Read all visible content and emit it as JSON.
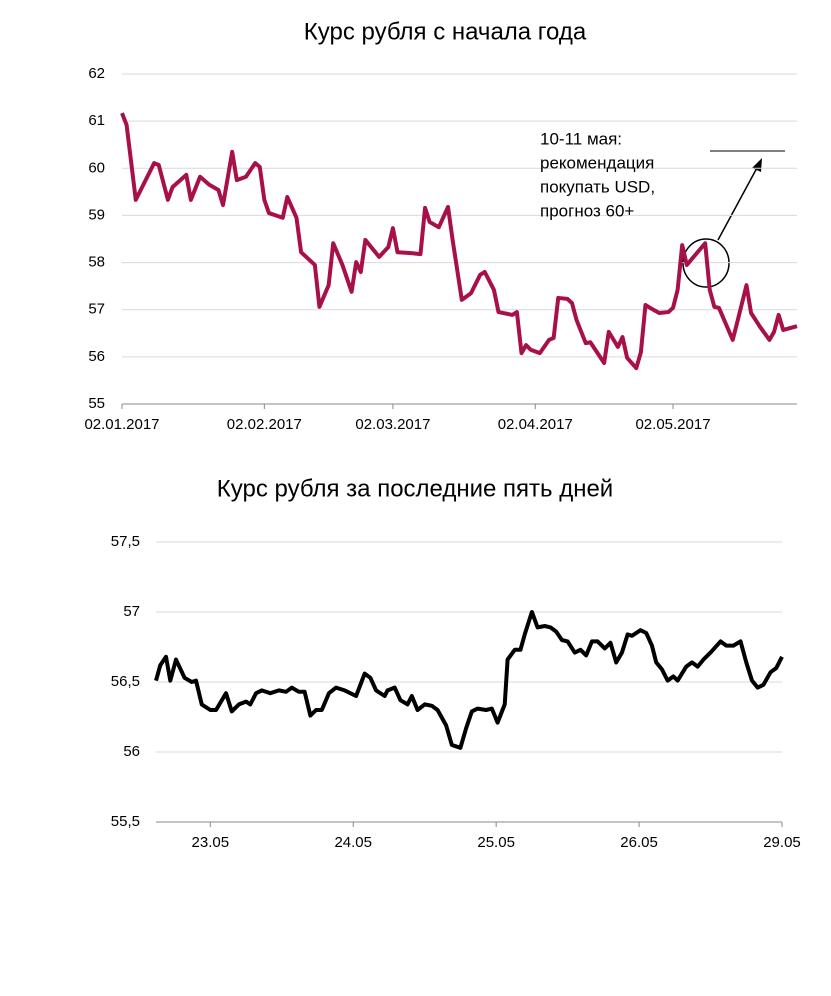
{
  "chart_data": [
    {
      "type": "line",
      "title": "Курс рубля с начала года",
      "x": [
        0,
        1,
        3,
        7,
        8,
        10,
        11,
        14,
        15,
        17,
        19,
        21,
        22,
        24,
        25,
        27,
        29,
        30,
        31,
        32,
        35,
        36,
        38,
        39,
        42,
        43,
        45,
        46,
        48,
        50,
        51,
        52,
        53,
        56,
        58,
        59,
        60,
        63,
        65,
        66,
        67,
        69,
        71,
        72,
        74,
        76,
        78,
        79,
        81,
        82,
        85,
        86,
        87,
        88,
        89,
        91,
        93,
        94,
        95,
        97,
        98,
        99,
        101,
        102,
        105,
        106,
        108,
        109,
        110,
        112,
        113,
        114,
        115,
        117,
        119,
        120,
        121,
        122,
        123,
        127,
        128,
        129,
        130,
        133,
        134,
        136,
        137,
        139,
        141,
        142,
        143,
        144,
        147
      ],
      "series": [
        {
          "name": null,
          "color": "#a8104a",
          "values": [
            61.17,
            60.92,
            59.33,
            60.11,
            60.07,
            59.33,
            59.6,
            59.86,
            59.33,
            59.82,
            59.65,
            59.54,
            59.22,
            60.35,
            59.75,
            59.82,
            60.11,
            60.03,
            59.33,
            59.05,
            58.95,
            59.39,
            58.95,
            58.22,
            57.95,
            57.06,
            57.52,
            58.41,
            57.95,
            57.38,
            58.01,
            57.8,
            58.48,
            58.12,
            58.33,
            58.73,
            58.22,
            58.2,
            58.18,
            59.16,
            58.86,
            58.75,
            59.18,
            58.48,
            57.21,
            57.35,
            57.74,
            57.8,
            57.42,
            56.95,
            56.89,
            56.95,
            56.08,
            56.25,
            56.15,
            56.08,
            56.36,
            56.4,
            57.25,
            57.23,
            57.14,
            56.78,
            56.29,
            56.31,
            55.87,
            56.53,
            56.21,
            56.42,
            55.98,
            55.76,
            56.1,
            57.1,
            57.04,
            56.93,
            56.95,
            57.04,
            57.42,
            58.37,
            57.95,
            58.41,
            57.42,
            57.06,
            57.04,
            56.36,
            56.74,
            57.52,
            56.93,
            56.63,
            56.36,
            56.53,
            56.89,
            56.57,
            56.65
          ]
        }
      ],
      "xlim": [
        0,
        147
      ],
      "xticks": [
        {
          "value": 0,
          "label": "02.01.2017"
        },
        {
          "value": 31,
          "label": "02.02.2017"
        },
        {
          "value": 59,
          "label": "02.03.2017"
        },
        {
          "value": 90,
          "label": "02.04.2017"
        },
        {
          "value": 120,
          "label": "02.05.2017"
        }
      ],
      "ylim": [
        55,
        62
      ],
      "yticks": [
        55,
        56,
        57,
        58,
        59,
        60,
        61,
        62
      ],
      "grid": true,
      "annotation": [
        "10-11 мая:",
        "рекомендация",
        "покупать USD,",
        "прогноз 60+"
      ]
    },
    {
      "type": "line",
      "title": "Курс рубля за последние пять дней",
      "x": [
        -0.38,
        -0.35,
        -0.31,
        -0.28,
        -0.24,
        -0.18,
        -0.13,
        -0.1,
        -0.06,
        0,
        0.04,
        0.11,
        0.15,
        0.2,
        0.25,
        0.28,
        0.32,
        0.36,
        0.42,
        0.48,
        0.53,
        0.57,
        0.62,
        0.66,
        0.7,
        0.74,
        0.78,
        0.83,
        0.88,
        0.94,
        0.98,
        1.02,
        1.08,
        1.12,
        1.16,
        1.22,
        1.24,
        1.29,
        1.33,
        1.38,
        1.41,
        1.45,
        1.5,
        1.55,
        1.59,
        1.65,
        1.69,
        1.75,
        1.79,
        1.83,
        1.87,
        1.93,
        1.97,
        2.01,
        2.06,
        2.08,
        2.13,
        2.17,
        2.2,
        2.25,
        2.29,
        2.34,
        2.38,
        2.42,
        2.46,
        2.5,
        2.55,
        2.59,
        2.63,
        2.67,
        2.71,
        2.76,
        2.8,
        2.84,
        2.88,
        2.92,
        2.95,
        3.01,
        3.05,
        3.09,
        3.12,
        3.16,
        3.2,
        3.24,
        3.27,
        3.33,
        3.37,
        3.41,
        3.45,
        3.5,
        3.57,
        3.61,
        3.66,
        3.71,
        3.75,
        3.79,
        3.83,
        3.87,
        3.92,
        3.96,
        4.0
      ],
      "series": [
        {
          "name": null,
          "color": "#000000",
          "values": [
            56.51,
            56.62,
            56.68,
            56.51,
            56.66,
            56.53,
            56.5,
            56.51,
            56.34,
            56.3,
            56.3,
            56.42,
            56.29,
            56.34,
            56.36,
            56.34,
            56.42,
            56.44,
            56.42,
            56.44,
            56.43,
            56.46,
            56.43,
            56.43,
            56.26,
            56.3,
            56.3,
            56.42,
            56.46,
            56.44,
            56.42,
            56.4,
            56.56,
            56.53,
            56.44,
            56.4,
            56.44,
            56.46,
            56.37,
            56.34,
            56.4,
            56.3,
            56.34,
            56.33,
            56.3,
            56.19,
            56.05,
            56.03,
            56.17,
            56.29,
            56.31,
            56.3,
            56.31,
            56.21,
            56.34,
            56.66,
            56.73,
            56.73,
            56.84,
            57.0,
            56.89,
            56.9,
            56.89,
            56.86,
            56.8,
            56.79,
            56.71,
            56.73,
            56.69,
            56.79,
            56.79,
            56.74,
            56.78,
            56.64,
            56.71,
            56.84,
            56.83,
            56.87,
            56.85,
            56.76,
            56.64,
            56.59,
            56.51,
            56.54,
            56.51,
            56.61,
            56.64,
            56.61,
            56.66,
            56.71,
            56.79,
            56.76,
            56.76,
            56.79,
            56.64,
            56.51,
            56.46,
            56.48,
            56.57,
            56.6,
            56.68
          ]
        }
      ],
      "xlim": [
        -0.38,
        4
      ],
      "xticks": [
        {
          "value": 0,
          "label": "23.05"
        },
        {
          "value": 1,
          "label": "24.05"
        },
        {
          "value": 2,
          "label": "25.05"
        },
        {
          "value": 3,
          "label": "26.05"
        },
        {
          "value": 4,
          "label": "29.05"
        }
      ],
      "ylim": [
        55.5,
        57.5
      ],
      "yticks": [
        {
          "value": 55.5,
          "label": "55,5"
        },
        56,
        {
          "value": 56.5,
          "label": "56,5"
        },
        57,
        {
          "value": 57.5,
          "label": "57,5"
        }
      ],
      "grid": true
    }
  ]
}
